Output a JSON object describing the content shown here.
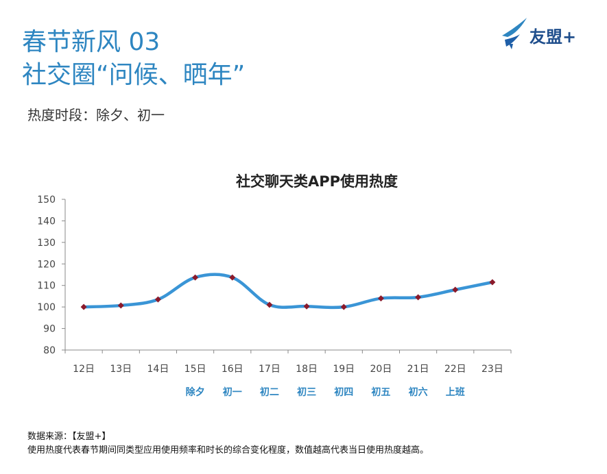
{
  "header": {
    "title_line1": "春节新风 03",
    "title_line2": "社交圈“问候、晒年”",
    "subtitle": "热度时段：除夕、初一"
  },
  "logo": {
    "text": "友盟+",
    "icon": "swift-bird-icon"
  },
  "colors": {
    "title": "#2e86c1",
    "line": "#3a95d6",
    "marker": "#8b1a2b",
    "sublabel": "#2e86c1"
  },
  "chart_data": {
    "type": "line",
    "title": "社交聊天类APP使用热度",
    "categories": [
      "12日",
      "13日",
      "14日",
      "15日",
      "16日",
      "17日",
      "18日",
      "19日",
      "20日",
      "21日",
      "22日",
      "23日"
    ],
    "sublabels": [
      "",
      "",
      "",
      "除夕",
      "初一",
      "初二",
      "初三",
      "初四",
      "初五",
      "初六",
      "上班",
      ""
    ],
    "series": [
      {
        "values": [
          100,
          100.7,
          103.5,
          113.7,
          113.7,
          101,
          100.3,
          100,
          104,
          104.5,
          108,
          111.5
        ]
      }
    ],
    "ylim": [
      80,
      150
    ],
    "yticks": [
      80,
      90,
      100,
      110,
      120,
      130,
      140,
      150
    ],
    "grid": false,
    "legend": "none"
  },
  "footer": {
    "source": "数据来源：【友盟+】",
    "note": "使用热度代表春节期间同类型应用使用频率和时长的综合变化程度，数值越高代表当日使用热度越高。"
  }
}
